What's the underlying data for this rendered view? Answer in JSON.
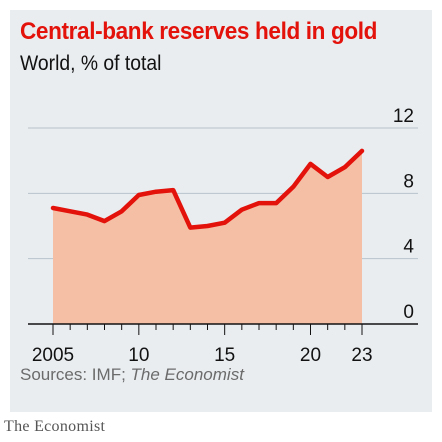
{
  "chart_data": {
    "type": "area",
    "title": "Central-bank reserves held in gold",
    "subtitle": "World, % of total",
    "source_prefix": "Sources: IMF; ",
    "source_italic": "The Economist",
    "branding": "The Economist",
    "x": [
      2005,
      2006,
      2007,
      2008,
      2009,
      2010,
      2011,
      2012,
      2013,
      2014,
      2015,
      2016,
      2017,
      2018,
      2019,
      2020,
      2021,
      2022,
      2023
    ],
    "values": [
      7.1,
      6.9,
      6.7,
      6.3,
      6.9,
      7.9,
      8.1,
      8.2,
      5.9,
      6.0,
      6.2,
      7.0,
      7.4,
      7.4,
      8.4,
      9.8,
      9.0,
      9.6,
      10.6
    ],
    "x_tick_labels": [
      "2005",
      "10",
      "15",
      "20",
      "23"
    ],
    "x_tick_values": [
      2005,
      2010,
      2015,
      2020,
      2023
    ],
    "y_tick_labels": [
      "12",
      "8",
      "4",
      "0"
    ],
    "y_tick_values": [
      12,
      8,
      4,
      0
    ],
    "ylim": [
      0,
      12
    ],
    "xlim": [
      2005,
      2023
    ],
    "grid": true,
    "colors": {
      "line": "#e3120b",
      "fill": "#f5bfa6",
      "grid": "#b7c3cc",
      "axis": "#121212"
    }
  }
}
